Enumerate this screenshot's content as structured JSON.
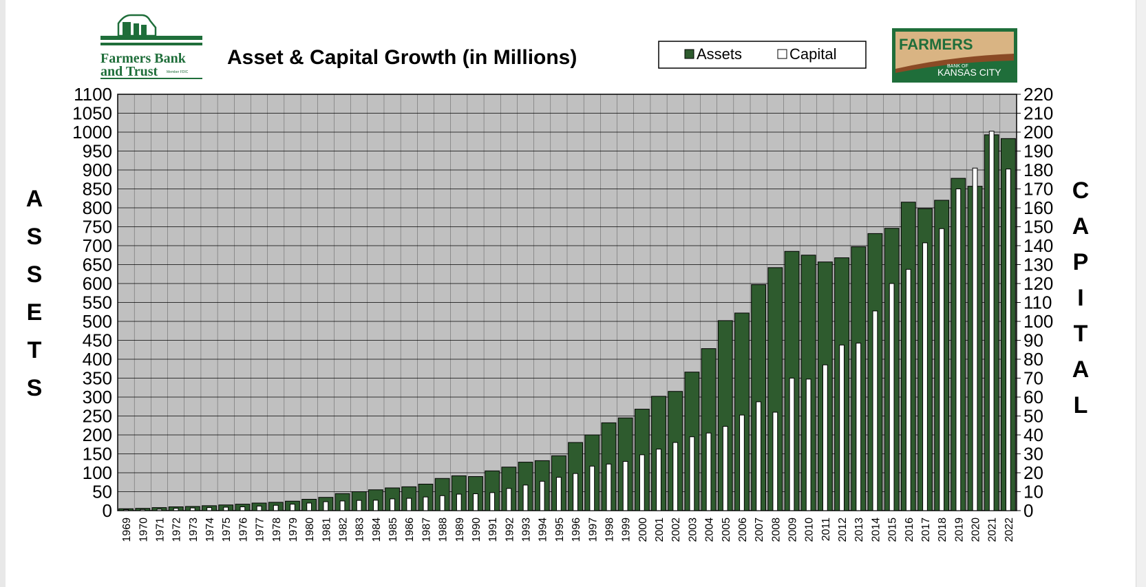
{
  "logos": {
    "left": {
      "line1": "Farmers Bank",
      "line2": "and Trust",
      "tag": "Member FDIC"
    },
    "right": {
      "line1": "FARMERS",
      "line2": "BANK OF",
      "line3": "KANSAS CITY"
    }
  },
  "colors": {
    "assets": "#2e5b2e",
    "capital": "#ffffff",
    "plot_bg": "#c0c0c0",
    "logo_green": "#1f6e3a",
    "logo_tan": "#d9b483",
    "logo_brown": "#8a4a25"
  },
  "chart_data": {
    "type": "bar",
    "title": "Asset & Capital Growth (in Millions)",
    "categories": [
      "1969",
      "1970",
      "1971",
      "1972",
      "1973",
      "1974",
      "1975",
      "1976",
      "1977",
      "1978",
      "1979",
      "1980",
      "1981",
      "1982",
      "1983",
      "1984",
      "1985",
      "1986",
      "1987",
      "1988",
      "1989",
      "1990",
      "1991",
      "1992",
      "1993",
      "1994",
      "1995",
      "1996",
      "1997",
      "1998",
      "1999",
      "2000",
      "2001",
      "2002",
      "2003",
      "2004",
      "2005",
      "2006",
      "2007",
      "2008",
      "2009",
      "2010",
      "2011",
      "2012",
      "2013",
      "2014",
      "2015",
      "2016",
      "2017",
      "2018",
      "2019",
      "2020",
      "2021",
      "2022"
    ],
    "series": [
      {
        "name": "Assets",
        "axis": "left",
        "color": "#2e5b2e",
        "values": [
          5,
          6,
          8,
          10,
          11,
          13,
          15,
          17,
          20,
          22,
          25,
          30,
          35,
          45,
          50,
          55,
          60,
          63,
          70,
          85,
          92,
          90,
          105,
          115,
          128,
          132,
          145,
          180,
          200,
          232,
          245,
          268,
          302,
          315,
          366,
          428,
          502,
          522,
          597,
          642,
          685,
          675,
          657,
          668,
          697,
          732,
          746,
          815,
          798,
          820,
          878,
          857,
          993,
          983
        ]
      },
      {
        "name": "Capital",
        "axis": "right",
        "color": "#ffffff",
        "values": [
          0.5,
          0.6,
          0.8,
          1.2,
          1.4,
          1.6,
          1.8,
          2,
          2.4,
          2.8,
          3.4,
          4,
          4.7,
          5.1,
          5.4,
          5.5,
          6.2,
          6.5,
          7.2,
          7.9,
          8.7,
          8.9,
          9.5,
          11.7,
          13.5,
          15.5,
          17.6,
          19.6,
          23.5,
          24.6,
          26,
          29.5,
          32.5,
          36,
          39,
          41,
          44.5,
          50.5,
          57.5,
          52,
          70,
          69.5,
          77,
          87.5,
          88.5,
          105.5,
          120,
          127.5,
          141.5,
          149,
          170,
          181,
          200.5,
          180.5
        ]
      }
    ],
    "y_left": {
      "label": "ASSETS",
      "min": 0,
      "max": 1100,
      "step": 50
    },
    "y_right": {
      "label": "CAPITAL",
      "min": 0,
      "max": 220,
      "step": 10
    },
    "legend": {
      "position": "top-right",
      "entries": [
        "Assets",
        "Capital"
      ]
    },
    "grid": true
  }
}
